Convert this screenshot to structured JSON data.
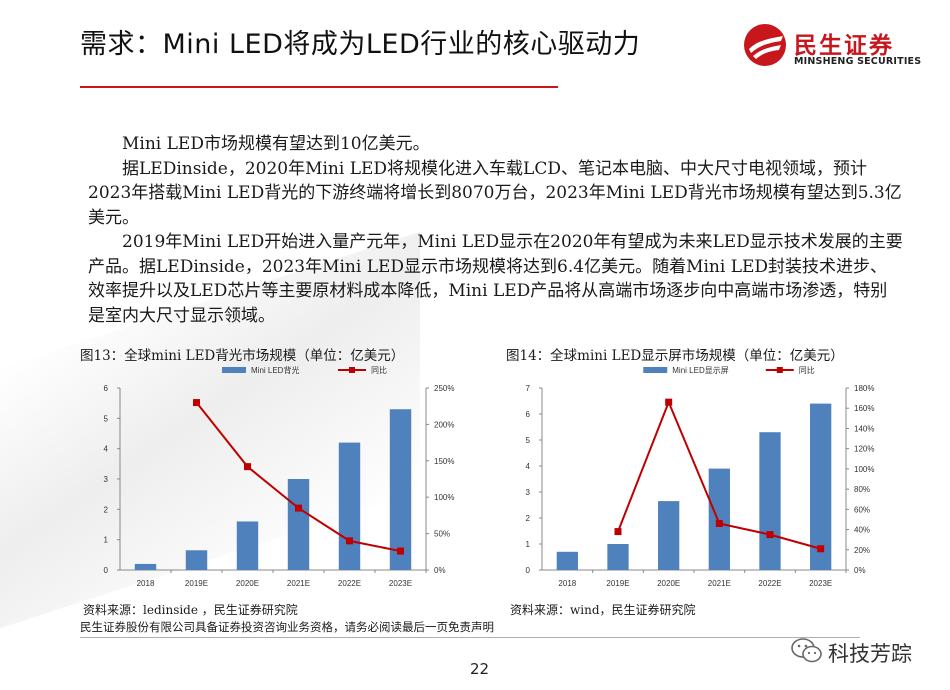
{
  "header": {
    "title": "需求：Mini LED将成为LED行业的核心驱动力",
    "logo_cn": "民生证券",
    "logo_en": "MINSHENG SECURITIES"
  },
  "body_paragraphs": [
    "Mini LED市场规模有望达到10亿美元。",
    "据LEDinside，2020年Mini LED将规模化进入车载LCD、笔记本电脑、中大尺寸电视领域，预计2023年搭载Mini LED背光的下游终端将增长到8070万台，2023年Mini LED背光市场规模有望达到5.3亿美元。",
    "2019年Mini LED开始进入量产元年，Mini LED显示在2020年有望成为未来LED显示技术发展的主要产品。据LEDinside，2023年Mini LED显示市场规模将达到6.4亿美元。随着Mini LED封装技术进步、效率提升以及LED芯片等主要原材料成本降低，Mini LED产品将从高端市场逐步向中高端市场渗透，特别是室内大尺寸显示领域。"
  ],
  "colors": {
    "brand_red": "#c8161d",
    "bar_blue": "#4f81bd",
    "line_red": "#c00000"
  },
  "chart_data": [
    {
      "type": "bar",
      "title": "图13：全球mini LED背光市场规模（单位：亿美元）",
      "categories": [
        "2018",
        "2019E",
        "2020E",
        "2021E",
        "2022E",
        "2023E"
      ],
      "series": [
        {
          "name": "Mini LED背光",
          "type": "bar",
          "axis": "left",
          "values": [
            0.2,
            0.65,
            1.6,
            3.0,
            4.2,
            5.3
          ]
        },
        {
          "name": "同比",
          "type": "line",
          "axis": "right",
          "values": [
            null,
            2.3,
            1.42,
            0.85,
            0.4,
            0.26
          ]
        }
      ],
      "y_left": {
        "min": 0,
        "max": 6,
        "ticks": [
          "0",
          "1",
          "2",
          "3",
          "4",
          "5",
          "6"
        ]
      },
      "y_right": {
        "min": 0,
        "max": 2.5,
        "ticks": [
          "0%",
          "50%",
          "100%",
          "150%",
          "200%",
          "250%"
        ]
      },
      "legend": "top",
      "source": "资料来源：ledinside ，民生证券研究院"
    },
    {
      "type": "bar",
      "title": "图14：全球mini LED显示屏市场规模（单位：亿美元）",
      "categories": [
        "2018",
        "2019E",
        "2020E",
        "2021E",
        "2022E",
        "2023E"
      ],
      "series": [
        {
          "name": "Mini LED显示屏",
          "type": "bar",
          "axis": "left",
          "values": [
            0.7,
            1.0,
            2.65,
            3.9,
            5.3,
            6.4
          ]
        },
        {
          "name": "同比",
          "type": "line",
          "axis": "right",
          "values": [
            null,
            0.38,
            1.66,
            0.46,
            0.35,
            0.21
          ]
        }
      ],
      "y_left": {
        "min": 0,
        "max": 7,
        "ticks": [
          "0",
          "1",
          "2",
          "3",
          "4",
          "5",
          "6",
          "7"
        ]
      },
      "y_right": {
        "min": 0,
        "max": 1.8,
        "ticks": [
          "0%",
          "20%",
          "40%",
          "60%",
          "80%",
          "100%",
          "120%",
          "140%",
          "160%",
          "180%"
        ]
      },
      "legend": "top",
      "source": "资料来源：wind，民生证券研究院"
    }
  ],
  "footer": {
    "disclaimer": "民生证券股份有限公司具备证券投资咨询业务资格，请务必阅读最后一页免责声明",
    "page_number": "22",
    "wechat_account": "科技芳踪"
  }
}
